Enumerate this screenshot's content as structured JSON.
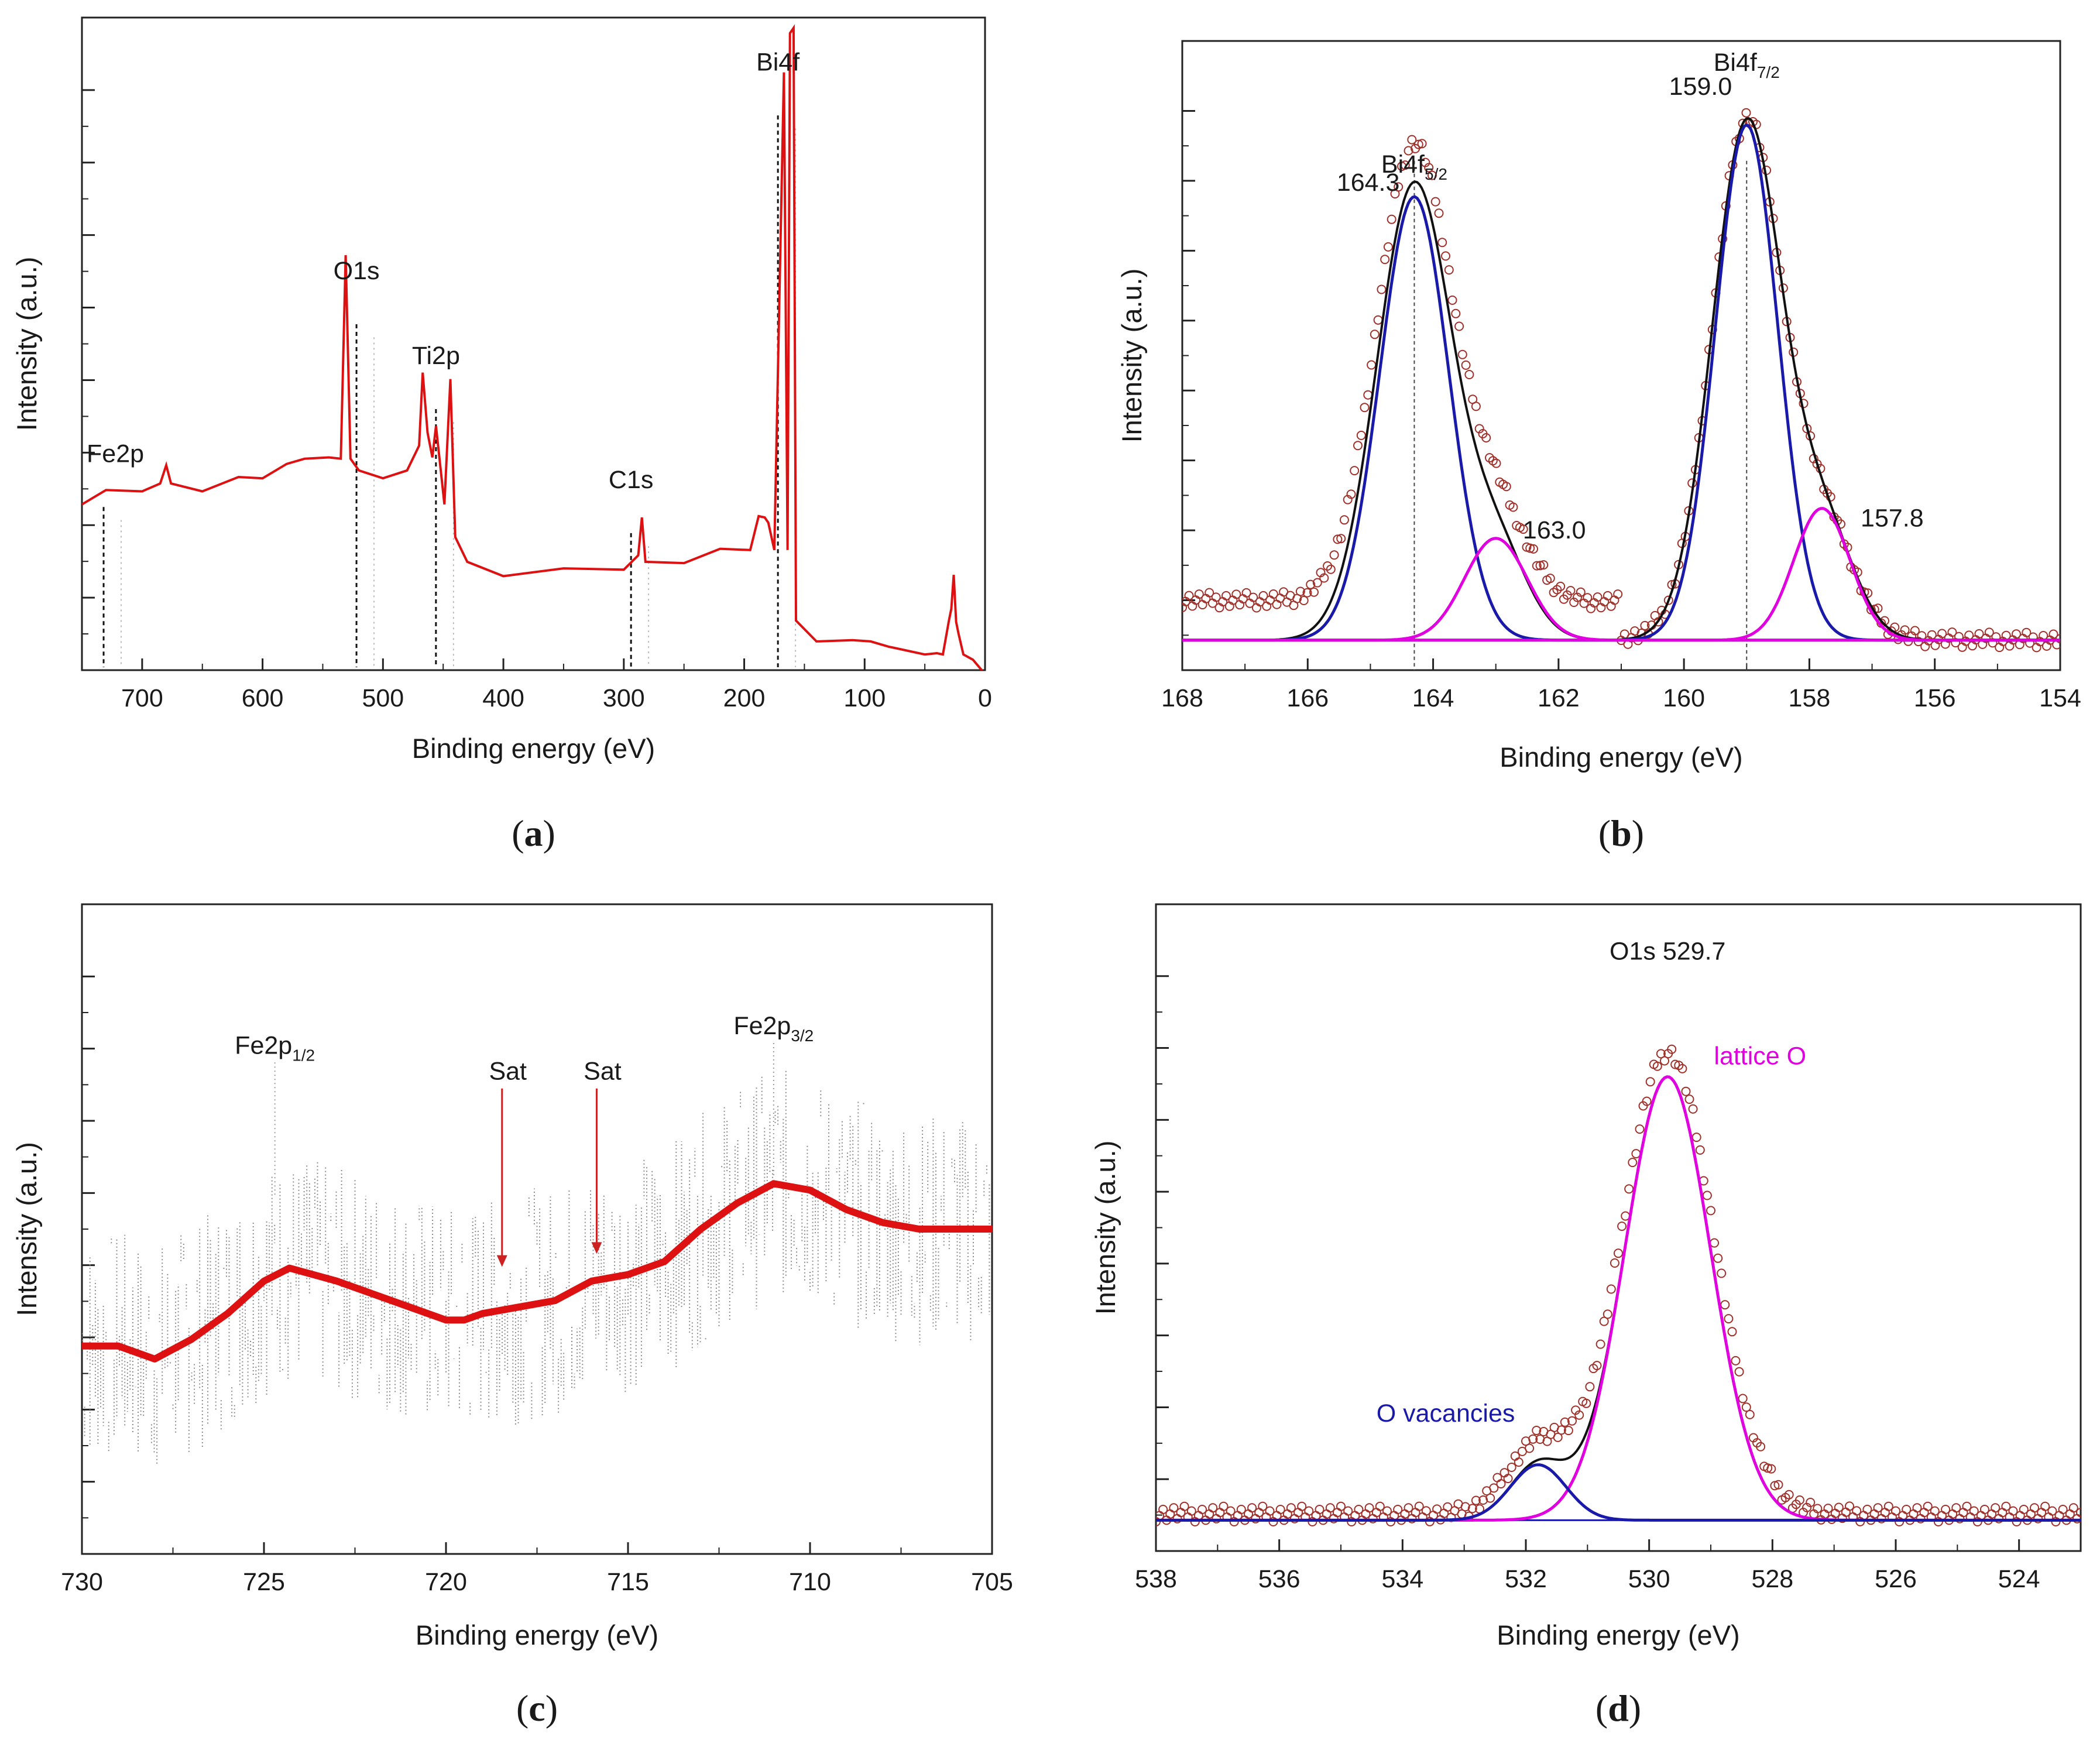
{
  "chart_data": [
    {
      "panel": "a",
      "type": "line",
      "caption": {
        "open": "(",
        "letter": "a",
        "close": ")"
      },
      "xlabel": "Binding energy (eV)",
      "ylabel": "Intensity (a.u.)",
      "xlim": [
        750,
        0
      ],
      "ylim": [
        0,
        100
      ],
      "x_ticks": [
        700,
        600,
        500,
        400,
        300,
        200,
        100,
        0
      ],
      "color": "#dd1111",
      "annotations": [
        {
          "label": "Fe2p",
          "x": 732,
          "y": 31
        },
        {
          "label": "O1s",
          "x": 522,
          "y": 59
        },
        {
          "label": "Ti2p",
          "x": 456,
          "y": 46
        },
        {
          "label": "C1s",
          "x": 294,
          "y": 27
        },
        {
          "label": "Bi4f",
          "x": 172,
          "y": 91
        }
      ],
      "series": [
        {
          "name": "survey",
          "points": [
            [
              750,
              26
            ],
            [
              730,
              27
            ],
            [
              700,
              28
            ],
            [
              685,
              28
            ],
            [
              680,
              32
            ],
            [
              676,
              28
            ],
            [
              650,
              28
            ],
            [
              620,
              29
            ],
            [
              600,
              30
            ],
            [
              580,
              31
            ],
            [
              565,
              33
            ],
            [
              545,
              32
            ],
            [
              535,
              33
            ],
            [
              531,
              63
            ],
            [
              527,
              33
            ],
            [
              520,
              30
            ],
            [
              500,
              30
            ],
            [
              480,
              30
            ],
            [
              470,
              35
            ],
            [
              467,
              45
            ],
            [
              463,
              37
            ],
            [
              459,
              32
            ],
            [
              456,
              38
            ],
            [
              452,
              30
            ],
            [
              449,
              26
            ],
            [
              444,
              44
            ],
            [
              440,
              21
            ],
            [
              430,
              16
            ],
            [
              400,
              15
            ],
            [
              350,
              15
            ],
            [
              300,
              16
            ],
            [
              288,
              17
            ],
            [
              285,
              24
            ],
            [
              282,
              16
            ],
            [
              250,
              17
            ],
            [
              220,
              18
            ],
            [
              195,
              19
            ],
            [
              188,
              23
            ],
            [
              183,
              24
            ],
            [
              180,
              22
            ],
            [
              175,
              19
            ],
            [
              167,
              91
            ],
            [
              164,
              19
            ],
            [
              162,
              97
            ],
            [
              159,
              99
            ],
            [
              157,
              7
            ],
            [
              140,
              5
            ],
            [
              110,
              4
            ],
            [
              95,
              5
            ],
            [
              80,
              3
            ],
            [
              50,
              3
            ],
            [
              40,
              2
            ],
            [
              35,
              3
            ],
            [
              30,
              7
            ],
            [
              28,
              10
            ],
            [
              26,
              14
            ],
            [
              24,
              8
            ],
            [
              22,
              5
            ],
            [
              18,
              3
            ],
            [
              10,
              1
            ],
            [
              0,
              0
            ]
          ]
        }
      ]
    },
    {
      "panel": "b",
      "type": "line",
      "caption": {
        "open": "(",
        "letter": "b",
        "close": ")"
      },
      "xlabel": "Binding energy (eV)",
      "ylabel": "Intensity (a.u.)",
      "xlim": [
        168,
        154
      ],
      "ylim": [
        -5,
        100
      ],
      "x_ticks": [
        168,
        166,
        164,
        162,
        160,
        158,
        156,
        154
      ],
      "annotations": [
        {
          "label": "Bi4f",
          "sub": "5/2",
          "x": 164.3,
          "y": 78
        },
        {
          "label": "164.3",
          "x": 164.3,
          "y": 75
        },
        {
          "label": "163.0",
          "x": 163.0,
          "y": 17
        },
        {
          "label": "Bi4f",
          "sub": "7/2",
          "x": 159.0,
          "y": 95
        },
        {
          "label": "159.0",
          "x": 159.0,
          "y": 91
        },
        {
          "label": "157.8",
          "x": 157.8,
          "y": 19
        }
      ],
      "series": [
        {
          "name": "data",
          "style": "circles",
          "color": "#a0302a",
          "bg": 6,
          "peaks": [
            [
              164.3,
              76,
              0.6
            ],
            [
              163.0,
              15,
              0.5
            ],
            [
              159.0,
              86,
              0.55
            ],
            [
              157.8,
              19,
              0.5
            ]
          ]
        },
        {
          "name": "envelope",
          "color": "#111111",
          "bg": 0,
          "peaks": [
            [
              164.3,
              76,
              0.6
            ],
            [
              163.0,
              15,
              0.5
            ],
            [
              159.0,
              86,
              0.55
            ],
            [
              157.8,
              19,
              0.5
            ]
          ]
        },
        {
          "name": "Bi4f5/2 main",
          "color": "#1a1aaa",
          "bg": 0,
          "peaks": [
            [
              164.3,
              74,
              0.55
            ]
          ]
        },
        {
          "name": "Bi4f7/2 main",
          "color": "#1a1aaa",
          "bg": 0,
          "peaks": [
            [
              159.0,
              86,
              0.5
            ]
          ]
        },
        {
          "name": "163.0 component",
          "color": "#e000e0",
          "bg": 0,
          "peaks": [
            [
              163.0,
              17,
              0.5
            ]
          ]
        },
        {
          "name": "157.8 component",
          "color": "#e000e0",
          "bg": 0,
          "peaks": [
            [
              157.8,
              22,
              0.45
            ]
          ]
        }
      ],
      "refline": [
        164.3,
        159.0
      ]
    },
    {
      "panel": "c",
      "type": "line",
      "caption": {
        "open": "(",
        "letter": "c",
        "close": ")"
      },
      "xlabel": "Binding energy (eV)",
      "ylabel": "Intensity (a.u.)",
      "xlim": [
        730,
        705
      ],
      "ylim": [
        0,
        100
      ],
      "x_ticks": [
        730,
        725,
        720,
        715,
        710,
        705
      ],
      "annotations": [
        {
          "label": "Fe2p",
          "sub": "1/2",
          "x": 724.7,
          "y": 77
        },
        {
          "label": "Sat",
          "x": 718.3,
          "y": 73,
          "arrow_to": 44
        },
        {
          "label": "Sat",
          "x": 715.7,
          "y": 73,
          "arrow_to": 46
        },
        {
          "label": "Fe2p",
          "sub": "3/2",
          "x": 711.0,
          "y": 80
        }
      ],
      "series": [
        {
          "name": "smoothed",
          "color": "#dd1111",
          "points": [
            [
              730,
              32
            ],
            [
              729,
              32
            ],
            [
              728,
              30
            ],
            [
              727,
              33
            ],
            [
              726,
              37
            ],
            [
              725,
              42
            ],
            [
              724.3,
              44
            ],
            [
              723,
              42
            ],
            [
              722,
              40
            ],
            [
              721,
              38
            ],
            [
              720,
              36
            ],
            [
              719.5,
              36
            ],
            [
              719,
              37
            ],
            [
              718,
              38
            ],
            [
              717,
              39
            ],
            [
              716,
              42
            ],
            [
              715,
              43
            ],
            [
              714,
              45
            ],
            [
              713,
              50
            ],
            [
              712,
              54
            ],
            [
              711,
              57
            ],
            [
              710,
              56
            ],
            [
              709,
              53
            ],
            [
              708,
              51
            ],
            [
              707,
              50
            ],
            [
              706,
              50
            ],
            [
              705,
              50
            ]
          ]
        },
        {
          "name": "raw",
          "color": "#8a8a8a",
          "noise": 18
        }
      ]
    },
    {
      "panel": "d",
      "type": "line",
      "caption": {
        "open": "(",
        "letter": "d",
        "close": ")"
      },
      "xlabel": "Binding energy (eV)",
      "ylabel": "Intensity (a.u.)",
      "xlim": [
        538,
        523
      ],
      "ylim": [
        -5,
        100
      ],
      "x_ticks": [
        538,
        536,
        534,
        532,
        530,
        528,
        526,
        524
      ],
      "annotations": [
        {
          "label": "O1s  529.7",
          "x": 529.7,
          "y": 91
        },
        {
          "label": "lattice O",
          "x": 528.2,
          "y": 74,
          "color": "#e000e0"
        },
        {
          "label": "O vacancies",
          "x": 533.3,
          "y": 16,
          "color": "#1a1aaa"
        }
      ],
      "series": [
        {
          "name": "data",
          "style": "circles",
          "color": "#a0302a",
          "bg": 2,
          "peaks": [
            [
              529.7,
              75,
              0.75
            ],
            [
              531.8,
              11,
              0.5
            ]
          ]
        },
        {
          "name": "envelope",
          "color": "#111111",
          "bg": 0,
          "peaks": [
            [
              529.7,
              72,
              0.7
            ],
            [
              531.8,
              9,
              0.45
            ]
          ]
        },
        {
          "name": "lattice O",
          "color": "#e000e0",
          "bg": 0,
          "peaks": [
            [
              529.7,
              72,
              0.7
            ]
          ]
        },
        {
          "name": "O vacancies",
          "color": "#1a1aaa",
          "bg": 0,
          "peaks": [
            [
              531.8,
              9,
              0.45
            ]
          ]
        }
      ]
    }
  ]
}
